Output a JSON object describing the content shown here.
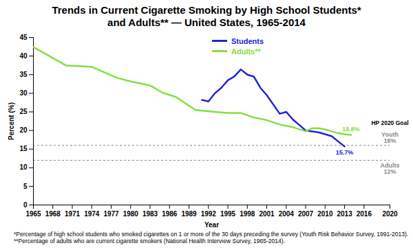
{
  "chart_data": {
    "type": "line",
    "title": "Trends in Current Cigarette Smoking by High School Students* \nand Adults** — United States, 1965-2014",
    "x_label": "Year",
    "y_label": "Percent (%)",
    "xlim": [
      1965,
      2020
    ],
    "xticks": [
      1965,
      1968,
      1971,
      1974,
      1977,
      1980,
      1983,
      1986,
      1989,
      1992,
      1995,
      1998,
      2001,
      2004,
      2007,
      2010,
      2013,
      2016,
      2020
    ],
    "ylim": [
      0,
      45
    ],
    "yticks": [
      0,
      5,
      10,
      15,
      20,
      25,
      30,
      35,
      40,
      45
    ],
    "grid": false,
    "legend": "top",
    "x": [
      1965,
      1970,
      1974,
      1978,
      1980,
      1983,
      1985,
      1987,
      1990,
      1991,
      1992,
      1993,
      1994,
      1995,
      1996,
      1997,
      1998,
      1999,
      2000,
      2001,
      2002,
      2003,
      2004,
      2005,
      2006,
      2007,
      2008,
      2009,
      2010,
      2011,
      2012,
      2013,
      2014
    ],
    "series": [
      {
        "name": "Students",
        "color": "#2323d8",
        "values": [
          null,
          null,
          null,
          null,
          null,
          null,
          null,
          null,
          null,
          28.2,
          27.8,
          30.0,
          31.5,
          33.5,
          34.5,
          36.4,
          35.0,
          34.5,
          31.5,
          29.5,
          27.0,
          24.5,
          25.0,
          23.0,
          21.5,
          20.0,
          null,
          19.5,
          null,
          18.5,
          null,
          15.7,
          null
        ],
        "value_labels": [
          null,
          null,
          null,
          null,
          null,
          null,
          null,
          null,
          null,
          null,
          null,
          null,
          null,
          null,
          null,
          null,
          null,
          null,
          null,
          null,
          null,
          null,
          null,
          null,
          null,
          null,
          null,
          null,
          null,
          null,
          null,
          "15.7%",
          null
        ]
      },
      {
        "name": "Adults**",
        "color": "#80e040",
        "values": [
          42.4,
          37.5,
          37.1,
          34.1,
          33.2,
          32.1,
          30.1,
          29.0,
          25.5,
          null,
          null,
          25.0,
          null,
          24.7,
          null,
          24.7,
          null,
          23.5,
          null,
          22.8,
          null,
          21.6,
          null,
          20.9,
          null,
          19.8,
          20.6,
          20.6,
          20.3,
          19.8,
          19.3,
          19.0,
          18.8
        ],
        "value_labels": [
          null,
          null,
          null,
          null,
          null,
          null,
          null,
          null,
          null,
          null,
          null,
          null,
          null,
          null,
          null,
          null,
          null,
          null,
          null,
          null,
          null,
          null,
          null,
          null,
          null,
          null,
          null,
          null,
          null,
          null,
          null,
          null,
          "18.8%"
        ]
      }
    ],
    "annotations": {
      "goal_title": "HP 2020 Goal",
      "goals": [
        {
          "name": "Youth",
          "value": 16,
          "label": "16%"
        },
        {
          "name": "Adults",
          "value": 12,
          "label": "12%"
        }
      ]
    },
    "notes": [
      "*Percentage of high school students who smoked cigarettes on 1 or more of the 30 days preceding the survey (Youth Risk Behavior Survey, 1991-2013).",
      "**Percentage of adults who are current cigarette smokers (National Health Interview Survey, 1965-2014)."
    ]
  }
}
